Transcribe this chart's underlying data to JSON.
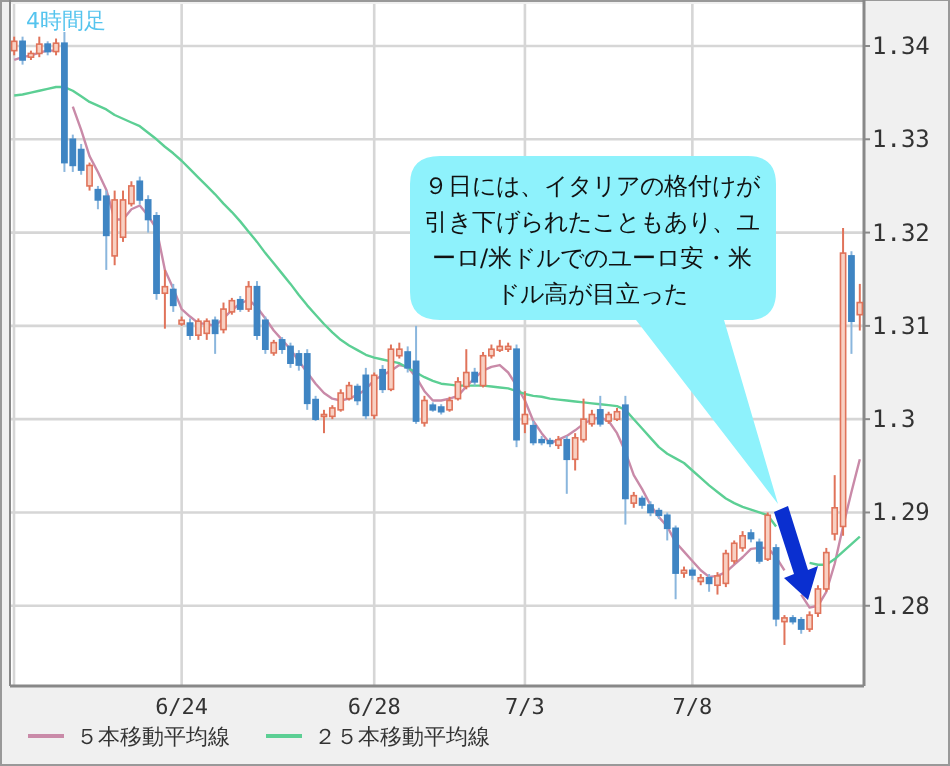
{
  "chart_data": {
    "type": "candlestick",
    "categories": [
      null,
      null,
      null,
      null,
      null,
      null,
      null,
      null,
      null,
      null,
      null,
      null,
      null,
      null,
      null,
      null,
      null,
      null,
      null,
      null,
      "6/24",
      null,
      null,
      null,
      null,
      null,
      null,
      null,
      null,
      null,
      null,
      null,
      null,
      null,
      null,
      null,
      null,
      null,
      null,
      null,
      null,
      null,
      null,
      "6/28",
      null,
      null,
      null,
      null,
      null,
      null,
      null,
      null,
      null,
      null,
      null,
      null,
      null,
      null,
      null,
      null,
      null,
      "7/3",
      null,
      null,
      null,
      null,
      null,
      null,
      null,
      null,
      null,
      null,
      null,
      null,
      null,
      null,
      null,
      null,
      null,
      null,
      null,
      "7/8",
      null,
      null,
      null,
      null,
      null,
      null,
      null,
      null,
      null,
      null,
      null,
      null,
      null,
      null,
      null,
      null,
      null,
      null,
      null,
      null
    ],
    "ohlc": [
      [
        1.3395,
        1.341,
        1.339,
        1.3405
      ],
      [
        1.3405,
        1.341,
        1.338,
        1.3385
      ],
      [
        1.3388,
        1.3395,
        1.3385,
        1.3392
      ],
      [
        1.3392,
        1.341,
        1.3388,
        1.3402
      ],
      [
        1.3402,
        1.3405,
        1.339,
        1.3394
      ],
      [
        1.3394,
        1.3408,
        1.339,
        1.3403
      ],
      [
        1.3403,
        1.3415,
        1.3265,
        1.3275
      ],
      [
        1.33,
        1.3305,
        1.3265,
        1.3272
      ],
      [
        1.3289,
        1.3295,
        1.3262,
        1.3267
      ],
      [
        1.325,
        1.3275,
        1.3245,
        1.3272
      ],
      [
        1.3246,
        1.325,
        1.3225,
        1.3235
      ],
      [
        1.3239,
        1.3245,
        1.316,
        1.3197
      ],
      [
        1.3175,
        1.3245,
        1.3165,
        1.3235
      ],
      [
        1.3195,
        1.3245,
        1.319,
        1.3235
      ],
      [
        1.3231,
        1.3255,
        1.3228,
        1.325
      ],
      [
        1.3255,
        1.326,
        1.323,
        1.3235
      ],
      [
        1.3235,
        1.324,
        1.32,
        1.3214
      ],
      [
        1.3218,
        1.3222,
        1.3128,
        1.3135
      ],
      [
        1.3135,
        1.316,
        1.3097,
        1.3142
      ],
      [
        1.3139,
        1.3145,
        1.3115,
        1.3122
      ],
      [
        1.3102,
        1.311,
        1.31,
        1.3106
      ],
      [
        1.3103,
        1.3108,
        1.3085,
        1.309
      ],
      [
        1.309,
        1.3108,
        1.3085,
        1.3105
      ],
      [
        1.3092,
        1.3108,
        1.3085,
        1.3105
      ],
      [
        1.3106,
        1.311,
        1.307,
        1.3092
      ],
      [
        1.3096,
        1.3125,
        1.3092,
        1.3118
      ],
      [
        1.3115,
        1.313,
        1.3112,
        1.3127
      ],
      [
        1.3128,
        1.3132,
        1.3115,
        1.3118
      ],
      [
        1.3118,
        1.3148,
        1.3115,
        1.3142
      ],
      [
        1.3142,
        1.3148,
        1.3085,
        1.309
      ],
      [
        1.3106,
        1.311,
        1.307,
        1.3075
      ],
      [
        1.3071,
        1.3085,
        1.3068,
        1.3082
      ],
      [
        1.3085,
        1.3088,
        1.307,
        1.3075
      ],
      [
        1.3078,
        1.3082,
        1.3055,
        1.306
      ],
      [
        1.307,
        1.3074,
        1.3052,
        1.3058
      ],
      [
        1.307,
        1.3075,
        1.301,
        1.3017
      ],
      [
        1.3021,
        1.3025,
        1.2998,
        1.3
      ],
      [
        1.3003,
        1.301,
        1.2985,
        1.3005
      ],
      [
        1.3003,
        1.3015,
        1.3,
        1.3012
      ],
      [
        1.301,
        1.3032,
        1.3008,
        1.3028
      ],
      [
        1.3022,
        1.304,
        1.302,
        1.3036
      ],
      [
        1.3035,
        1.3038,
        1.3015,
        1.302
      ],
      [
        1.3047,
        1.3055,
        1.3,
        1.3004
      ],
      [
        1.3004,
        1.305,
        1.3,
        1.3047
      ],
      [
        1.3053,
        1.3058,
        1.3028,
        1.3032
      ],
      [
        1.3032,
        1.308,
        1.303,
        1.3075
      ],
      [
        1.3068,
        1.3082,
        1.3065,
        1.3075
      ],
      [
        1.3072,
        1.3078,
        1.305,
        1.3055
      ],
      [
        1.3062,
        1.31,
        1.2995,
        1.2998
      ],
      [
        1.2996,
        1.3025,
        1.2992,
        1.302
      ],
      [
        1.3015,
        1.3018,
        1.3008,
        1.301
      ],
      [
        1.3013,
        1.3016,
        1.3005,
        1.3008
      ],
      [
        1.301,
        1.3024,
        1.3008,
        1.302
      ],
      [
        1.3022,
        1.3045,
        1.302,
        1.304
      ],
      [
        1.3035,
        1.3075,
        1.3032,
        1.305
      ],
      [
        1.305,
        1.3055,
        1.3036,
        1.304
      ],
      [
        1.3036,
        1.3072,
        1.3034,
        1.3068
      ],
      [
        1.3068,
        1.308,
        1.3065,
        1.3075
      ],
      [
        1.3074,
        1.3085,
        1.3072,
        1.3078
      ],
      [
        1.3075,
        1.3082,
        1.3072,
        1.3078
      ],
      [
        1.3075,
        1.308,
        1.297,
        1.2978
      ],
      [
        1.2995,
        1.303,
        1.2985,
        1.3005
      ],
      [
        1.2993,
        1.2998,
        1.2972,
        1.2975
      ],
      [
        1.2978,
        1.2982,
        1.2972,
        1.2975
      ],
      [
        1.2977,
        1.298,
        1.297,
        1.2974
      ],
      [
        1.2972,
        1.2982,
        1.2968,
        1.2978
      ],
      [
        1.2978,
        1.2982,
        1.292,
        1.2957
      ],
      [
        1.2957,
        1.2985,
        1.2945,
        1.298
      ],
      [
        1.2978,
        1.3022,
        1.2975,
        1.3
      ],
      [
        1.2995,
        1.301,
        1.2992,
        1.3005
      ],
      [
        1.301,
        1.3025,
        1.2992,
        1.2995
      ],
      [
        1.2998,
        1.3008,
        1.2995,
        1.3005
      ],
      [
        1.3,
        1.3012,
        1.2998,
        1.3008
      ],
      [
        1.3015,
        1.3025,
        1.2887,
        1.2915
      ],
      [
        1.291,
        1.2922,
        1.2905,
        1.2918
      ],
      [
        1.2915,
        1.2918,
        1.2904,
        1.2908
      ],
      [
        1.2908,
        1.2912,
        1.2896,
        1.29
      ],
      [
        1.2902,
        1.2905,
        1.2893,
        1.2897
      ],
      [
        1.2897,
        1.29,
        1.287,
        1.2883
      ],
      [
        1.2883,
        1.2886,
        1.2807,
        1.2835
      ],
      [
        1.2835,
        1.2842,
        1.283,
        1.2838
      ],
      [
        1.2838,
        1.2841,
        1.2828,
        1.2833
      ],
      [
        1.2826,
        1.2834,
        1.2822,
        1.283
      ],
      [
        1.283,
        1.2834,
        1.2815,
        1.2824
      ],
      [
        1.2822,
        1.2836,
        1.2812,
        1.2832
      ],
      [
        1.2824,
        1.286,
        1.282,
        1.2856
      ],
      [
        1.2848,
        1.287,
        1.2845,
        1.2867
      ],
      [
        1.2862,
        1.288,
        1.2858,
        1.2875
      ],
      [
        1.2878,
        1.2882,
        1.2868,
        1.2872
      ],
      [
        1.2868,
        1.2872,
        1.2845,
        1.2848
      ],
      [
        1.285,
        1.29,
        1.2848,
        1.2897
      ],
      [
        1.2862,
        1.2866,
        1.2778,
        1.2786
      ],
      [
        1.2783,
        1.279,
        1.2758,
        1.2787
      ],
      [
        1.2787,
        1.279,
        1.278,
        1.2783
      ],
      [
        1.2785,
        1.2788,
        1.277,
        1.2775
      ],
      [
        1.2775,
        1.2794,
        1.2772,
        1.279
      ],
      [
        1.2792,
        1.2822,
        1.2788,
        1.2818
      ],
      [
        1.2818,
        1.2862,
        1.2815,
        1.2857
      ],
      [
        1.2877,
        1.294,
        1.287,
        1.2905
      ],
      [
        1.2885,
        1.3205,
        1.2875,
        1.3178
      ],
      [
        1.3175,
        1.318,
        1.307,
        1.3105
      ],
      [
        1.3112,
        1.3145,
        1.3095,
        1.3125
      ]
    ],
    "series": [
      {
        "name": "５本移動平均線",
        "type": "line",
        "color": "#c98aa8",
        "values": [
          1.3385,
          1.3388,
          1.339,
          1.3393,
          1.3395,
          1.3395,
          null,
          1.3335,
          1.331,
          1.3282,
          1.3265,
          1.3246,
          1.3214,
          1.3214,
          1.3225,
          1.3229,
          1.3218,
          1.3204,
          1.316,
          1.314,
          1.3118,
          1.311,
          1.3103,
          1.3102,
          1.31,
          1.3108,
          1.3117,
          1.3124,
          1.3128,
          1.312,
          1.3108,
          1.3095,
          1.3085,
          1.3075,
          1.3062,
          1.305,
          1.3038,
          1.3028,
          1.3022,
          1.302,
          1.3022,
          1.3026,
          1.3032,
          1.3042,
          1.3047,
          1.3052,
          1.3058,
          1.3056,
          1.3045,
          1.303,
          1.302,
          1.302,
          1.3022,
          1.3025,
          1.3035,
          1.3044,
          1.3052,
          1.3056,
          1.3058,
          1.305,
          1.3036,
          1.302,
          1.2998,
          1.2985,
          1.2974,
          1.2978,
          1.2982,
          1.2988,
          1.2995,
          1.3,
          1.3002,
          1.2998,
          1.2985,
          1.2965,
          1.294,
          1.2925,
          1.2908,
          1.2895,
          1.2885,
          1.2868,
          1.2858,
          1.2848,
          1.2838,
          1.2831,
          1.2832,
          1.2836,
          1.2844,
          1.2852,
          1.2861,
          1.2862,
          1.2862,
          1.2852,
          1.2838,
          null,
          1.2812,
          1.2798,
          1.28,
          1.2815,
          1.2845,
          1.2885,
          1.2922,
          1.2957
        ]
      },
      {
        "name": "２５本移動平均線",
        "type": "line",
        "color": "#5ccf94",
        "values": [
          1.3347,
          1.3348,
          1.335,
          1.3352,
          1.3354,
          1.3356,
          1.3356,
          1.3352,
          1.3346,
          1.334,
          1.3336,
          1.3332,
          1.3326,
          1.3322,
          1.3318,
          1.3314,
          1.3307,
          1.33,
          1.3292,
          1.3285,
          1.3277,
          1.3268,
          1.3259,
          1.325,
          1.3241,
          1.3231,
          1.3222,
          1.3212,
          1.3201,
          1.319,
          1.3178,
          1.3167,
          1.3156,
          1.3145,
          1.3133,
          1.3122,
          1.3112,
          1.3102,
          1.3093,
          1.3085,
          1.3079,
          1.3074,
          1.3069,
          1.3066,
          1.3064,
          1.3062,
          1.306,
          1.3055,
          1.305,
          1.3045,
          1.3041,
          1.3038,
          1.3037,
          1.3036,
          1.3036,
          1.3036,
          1.3036,
          1.3035,
          1.3034,
          1.3033,
          1.303,
          1.3027,
          1.3025,
          1.3024,
          1.3022,
          1.3021,
          1.302,
          1.3019,
          1.3018,
          1.3017,
          1.3016,
          1.3015,
          1.3014,
          1.301,
          1.3,
          1.299,
          1.298,
          1.297,
          1.2963,
          1.2958,
          1.2953,
          1.2945,
          1.2937,
          1.2929,
          1.2922,
          1.2915,
          1.291,
          1.2906,
          1.2903,
          1.29,
          1.2897,
          1.2885,
          null,
          null,
          null,
          1.2846,
          1.2844,
          1.2844,
          1.285,
          1.2858,
          1.2866,
          1.2874
        ]
      }
    ],
    "ylim": [
      1.2714,
      1.3445
    ],
    "yticks": [
      1.28,
      1.29,
      1.3,
      1.31,
      1.32,
      1.33,
      1.34
    ],
    "grid": true,
    "legend": "bottom",
    "annotations": [
      "4時間足",
      "９日には、イタリアの格付けが引き下げられたこともあり、ユーロ/米ドルでのユーロ安・米ドル高が目立った"
    ]
  }
}
